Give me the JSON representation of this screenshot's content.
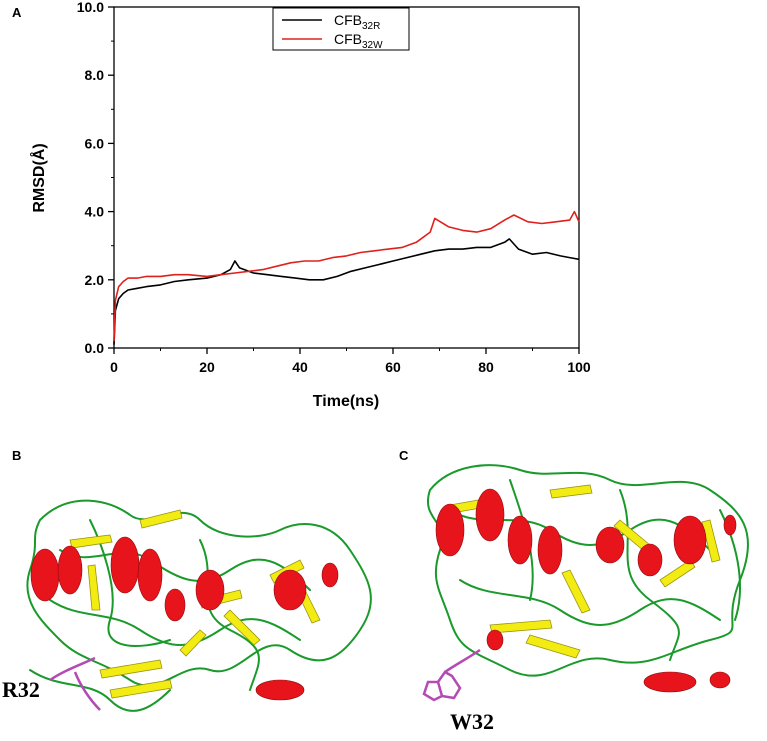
{
  "panels": {
    "a": "A",
    "b": "B",
    "c": "C"
  },
  "residue_labels": {
    "b": "R32",
    "c": "W32"
  },
  "colors": {
    "helix": "#e8141c",
    "sheet": "#f2ec12",
    "coil": "#1a9a2a",
    "residue": "#b44ab4"
  },
  "chart_data": {
    "type": "line",
    "title": "",
    "xlabel": "Time(ns)",
    "ylabel": "RMSD(Å)",
    "xlim": [
      0,
      100
    ],
    "ylim": [
      0,
      10
    ],
    "xticks": [
      "0",
      "20",
      "40",
      "60",
      "80",
      "100"
    ],
    "yticks": [
      "0.0",
      "2.0",
      "4.0",
      "6.0",
      "8.0",
      "10.0"
    ],
    "grid": false,
    "legend_position": "top-center",
    "series": [
      {
        "name": "CFB",
        "name_sub": "32R",
        "color": "#000000",
        "x": [
          0,
          0.3,
          1,
          2,
          3,
          5,
          7,
          10,
          13,
          16,
          20,
          23,
          25,
          26,
          27,
          30,
          33,
          36,
          39,
          42,
          45,
          48,
          51,
          54,
          57,
          60,
          63,
          66,
          69,
          72,
          75,
          78,
          81,
          84,
          85,
          87,
          90,
          93,
          96,
          98,
          100
        ],
        "values": [
          0.1,
          1.1,
          1.45,
          1.6,
          1.7,
          1.75,
          1.8,
          1.85,
          1.95,
          2.0,
          2.05,
          2.15,
          2.3,
          2.55,
          2.35,
          2.2,
          2.15,
          2.1,
          2.05,
          2.0,
          2.0,
          2.1,
          2.25,
          2.35,
          2.45,
          2.55,
          2.65,
          2.75,
          2.85,
          2.9,
          2.9,
          2.95,
          2.95,
          3.1,
          3.2,
          2.9,
          2.75,
          2.8,
          2.7,
          2.65,
          2.6
        ]
      },
      {
        "name": "CFB",
        "name_sub": "32W",
        "color": "#e0201c",
        "x": [
          0,
          0.3,
          1,
          2,
          3,
          5,
          7,
          10,
          13,
          16,
          20,
          23,
          26,
          29,
          32,
          35,
          38,
          41,
          44,
          47,
          50,
          53,
          56,
          59,
          62,
          65,
          68,
          69,
          72,
          75,
          78,
          81,
          84,
          86,
          89,
          92,
          95,
          98,
          99,
          100
        ],
        "values": [
          0.2,
          1.4,
          1.8,
          1.95,
          2.05,
          2.05,
          2.1,
          2.1,
          2.15,
          2.15,
          2.1,
          2.15,
          2.2,
          2.25,
          2.3,
          2.4,
          2.5,
          2.55,
          2.55,
          2.65,
          2.7,
          2.8,
          2.85,
          2.9,
          2.95,
          3.1,
          3.4,
          3.8,
          3.55,
          3.45,
          3.4,
          3.5,
          3.75,
          3.9,
          3.7,
          3.65,
          3.7,
          3.75,
          4.0,
          3.7
        ]
      }
    ]
  }
}
